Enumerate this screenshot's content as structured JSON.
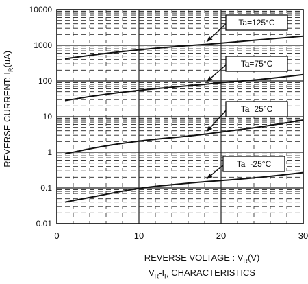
{
  "chart_data": {
    "type": "line",
    "title": "",
    "xlabel": "REVERSE VOLTAGE : VR(V)",
    "ylabel": "REVERSE CURRENT: IR(uA)",
    "xlim": [
      0,
      30
    ],
    "ylim": [
      0.01,
      10000
    ],
    "yscale": "log",
    "grid": true,
    "x_ticks": [
      "0",
      "10",
      "20",
      "30"
    ],
    "y_ticks": [
      "10000",
      "1000",
      "100",
      "10",
      "1",
      "0.1",
      "0.01"
    ],
    "series": [
      {
        "name": "Ta=125°C",
        "x": [
          1,
          5,
          10,
          15,
          18,
          20,
          25,
          30
        ],
        "y": [
          420,
          560,
          750,
          950,
          1050,
          1150,
          1450,
          1800
        ]
      },
      {
        "name": "Ta=75°C",
        "x": [
          1,
          5,
          10,
          15,
          18,
          20,
          25,
          30
        ],
        "y": [
          28,
          40,
          55,
          70,
          80,
          90,
          110,
          150
        ]
      },
      {
        "name": "Ta=25°C",
        "x": [
          1,
          5,
          10,
          15,
          18,
          20,
          25,
          30
        ],
        "y": [
          0.9,
          1.4,
          2.1,
          2.7,
          3.2,
          3.7,
          5.2,
          8.0
        ]
      },
      {
        "name": "Ta=-25°C",
        "x": [
          1,
          5,
          10,
          15,
          18,
          20,
          25,
          30
        ],
        "y": [
          0.04,
          0.06,
          0.1,
          0.13,
          0.15,
          0.16,
          0.2,
          0.27
        ]
      }
    ],
    "annotations": [
      {
        "text": "Ta=125°C",
        "series": 0,
        "at_x": 18
      },
      {
        "text": "Ta=75°C",
        "series": 1,
        "at_x": 18
      },
      {
        "text": "Ta=25°C",
        "series": 2,
        "at_x": 18
      },
      {
        "text": "Ta=-25°C",
        "series": 3,
        "at_x": 18
      }
    ]
  },
  "labels": {
    "xlabel_main": "REVERSE VOLTAGE : V",
    "xlabel_sub": "R",
    "xlabel_unit": "(V)",
    "ylabel_main": "REVERSE CURRENT: I",
    "ylabel_sub": "R",
    "ylabel_unit": "(uA)",
    "footer_v": "V",
    "footer_v_sub": "R",
    "footer_sep": "-I",
    "footer_i_sub": "R",
    "footer_rest": " CHARACTERISTICS"
  },
  "colors": {
    "line": "#111111",
    "grid": "#222222",
    "box_fill": "#ffffff"
  }
}
